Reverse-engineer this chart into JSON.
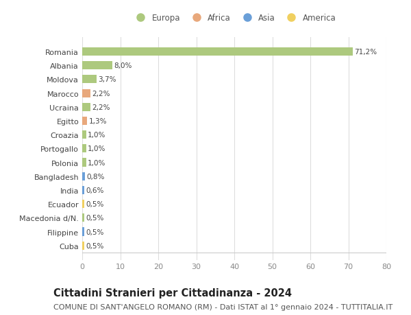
{
  "categories": [
    "Romania",
    "Albania",
    "Moldova",
    "Marocco",
    "Ucraina",
    "Egitto",
    "Croazia",
    "Portogallo",
    "Polonia",
    "Bangladesh",
    "India",
    "Ecuador",
    "Macedonia d/N.",
    "Filippine",
    "Cuba"
  ],
  "values": [
    71.2,
    8.0,
    3.7,
    2.2,
    2.2,
    1.3,
    1.0,
    1.0,
    1.0,
    0.8,
    0.6,
    0.5,
    0.5,
    0.5,
    0.5
  ],
  "labels": [
    "71,2%",
    "8,0%",
    "3,7%",
    "2,2%",
    "2,2%",
    "1,3%",
    "1,0%",
    "1,0%",
    "1,0%",
    "0,8%",
    "0,6%",
    "0,5%",
    "0,5%",
    "0,5%",
    "0,5%"
  ],
  "continents": [
    "Europa",
    "Europa",
    "Europa",
    "Africa",
    "Europa",
    "Africa",
    "Europa",
    "Europa",
    "Europa",
    "Asia",
    "Asia",
    "America",
    "Europa",
    "Asia",
    "America"
  ],
  "continent_colors": {
    "Europa": "#adc97e",
    "Africa": "#e8a87c",
    "Asia": "#6a9fd8",
    "America": "#f0d060"
  },
  "legend_order": [
    "Europa",
    "Africa",
    "Asia",
    "America"
  ],
  "title": "Cittadini Stranieri per Cittadinanza - 2024",
  "subtitle": "COMUNE DI SANT'ANGELO ROMANO (RM) - Dati ISTAT al 1° gennaio 2024 - TUTTITALIA.IT",
  "xlim": [
    0,
    80
  ],
  "xticks": [
    0,
    10,
    20,
    30,
    40,
    50,
    60,
    70,
    80
  ],
  "background_color": "#ffffff",
  "grid_color": "#dddddd",
  "bar_height": 0.6,
  "title_fontsize": 10.5,
  "subtitle_fontsize": 8,
  "tick_fontsize": 8,
  "label_fontsize": 7.5,
  "legend_fontsize": 8.5
}
